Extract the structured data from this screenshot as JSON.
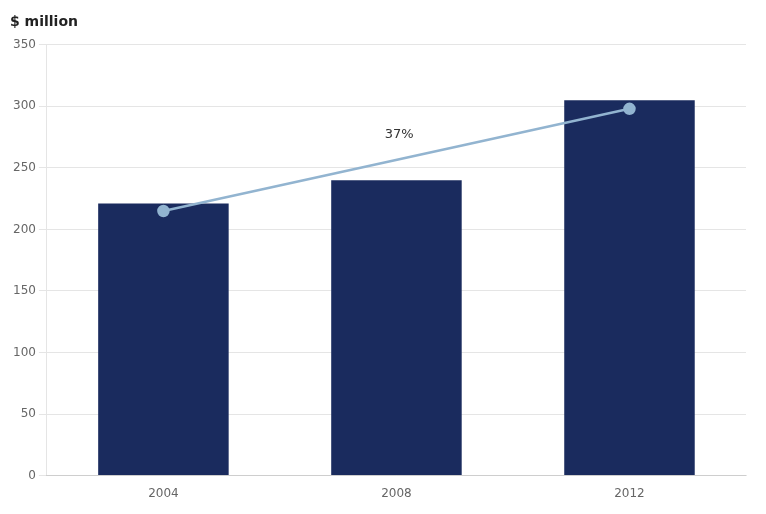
{
  "chart_data": {
    "type": "bar",
    "ylabel": "$ million",
    "categories": [
      "2004",
      "2008",
      "2012"
    ],
    "series": [
      {
        "type": "bar",
        "color": "#1a2b5e",
        "values": [
          221,
          240,
          305
        ]
      },
      {
        "type": "line",
        "color": "#92b4d0",
        "marker": "circle",
        "x": [
          "2004",
          "2012"
        ],
        "values": [
          215,
          298
        ]
      }
    ],
    "annotations": [
      {
        "text": "37%",
        "x": 0.95,
        "y": 272
      }
    ],
    "ylim": [
      0,
      350
    ],
    "yticks": [
      0,
      50,
      100,
      150,
      200,
      250,
      300,
      350
    ],
    "grid": true
  }
}
